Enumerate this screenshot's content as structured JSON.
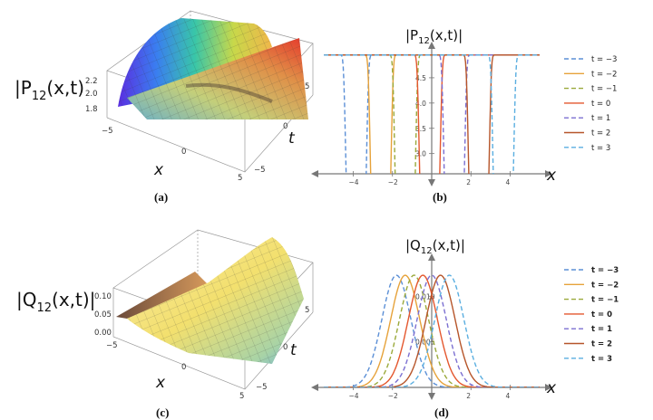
{
  "panels": {
    "a": {
      "label": "(a)",
      "zlabel_main": "|P",
      "zlabel_sub": "12",
      "zlabel_tail": "(x,t)",
      "xname": "x",
      "tname": "t",
      "zticks": [
        "2.2",
        "2.0",
        "1.8"
      ],
      "xticks": [
        "−5",
        "0",
        "5"
      ],
      "tticks": [
        "5",
        "0",
        "−5"
      ]
    },
    "b": {
      "label": "(b)",
      "title_main": "|P",
      "title_sub": "12",
      "title_tail": "(x,t)|",
      "xname": "x"
    },
    "c": {
      "label": "(c)",
      "zlabel_main": "|Q",
      "zlabel_sub": "12",
      "zlabel_tail": "(x,t)|",
      "xname": "x",
      "tname": "t",
      "zticks": [
        "0.10",
        "0.05",
        "0.00"
      ],
      "xticks": [
        "−5",
        "0",
        "5"
      ],
      "tticks": [
        "5",
        "0",
        "−5"
      ]
    },
    "d": {
      "label": "(d)",
      "title_main": "|Q",
      "title_sub": "12",
      "title_tail": "(x,t)|",
      "xname": "x"
    }
  },
  "colors": {
    "blue": "#5b8fd6",
    "orange": "#e6a23a",
    "olive": "#9aa93a",
    "red": "#e4572e",
    "purple": "#7b6fd1",
    "brown": "#b6552a",
    "sky": "#5aaee0"
  },
  "chart_data": [
    {
      "id": "b",
      "type": "line",
      "title": "|P12(x,t)|",
      "xlabel": "x",
      "xlim": [
        -5.5,
        5.5
      ],
      "ylim": [
        2.6,
        5.0
      ],
      "xticks": [
        "-4",
        "-2",
        "2",
        "4"
      ],
      "yticks": [
        "3.0",
        "3.5",
        "4.0",
        "4.5"
      ],
      "series": [
        {
          "name": "t = −3",
          "t": -3,
          "dash": true,
          "color": "#5b8fd6"
        },
        {
          "name": "t = −2",
          "t": -2,
          "dash": false,
          "color": "#e6a23a"
        },
        {
          "name": "t = −1",
          "t": -1,
          "dash": true,
          "color": "#9aa93a"
        },
        {
          "name": "t = 0",
          "t": 0,
          "dash": false,
          "color": "#e4572e"
        },
        {
          "name": "t = 1",
          "t": 1,
          "dash": true,
          "color": "#7b6fd1"
        },
        {
          "name": "t = 2",
          "t": 2,
          "dash": false,
          "color": "#b6552a"
        },
        {
          "name": "t = 3",
          "t": 3,
          "dash": true,
          "color": "#5aaee0"
        }
      ]
    },
    {
      "id": "d",
      "type": "line",
      "title": "|Q12(x,t)|",
      "xlabel": "x",
      "xlim": [
        -5.5,
        5.5
      ],
      "ylim": [
        0,
        0.0135
      ],
      "xticks": [
        "-4",
        "-2",
        "2",
        "4"
      ],
      "yticks": [
        "0.005",
        "0.010"
      ],
      "series": [
        {
          "name": "t = −3",
          "t": -3,
          "dash": true,
          "color": "#5b8fd6"
        },
        {
          "name": "t = −2",
          "t": -2,
          "dash": false,
          "color": "#e6a23a"
        },
        {
          "name": "t = −1",
          "t": -1,
          "dash": true,
          "color": "#9aa93a"
        },
        {
          "name": "t = 0",
          "t": 0,
          "dash": false,
          "color": "#e4572e"
        },
        {
          "name": "t = 1",
          "t": 1,
          "dash": true,
          "color": "#7b6fd1"
        },
        {
          "name": "t = 2",
          "t": 2,
          "dash": false,
          "color": "#b6552a"
        },
        {
          "name": "t = 3",
          "t": 3,
          "dash": true,
          "color": "#5aaee0"
        }
      ]
    }
  ]
}
